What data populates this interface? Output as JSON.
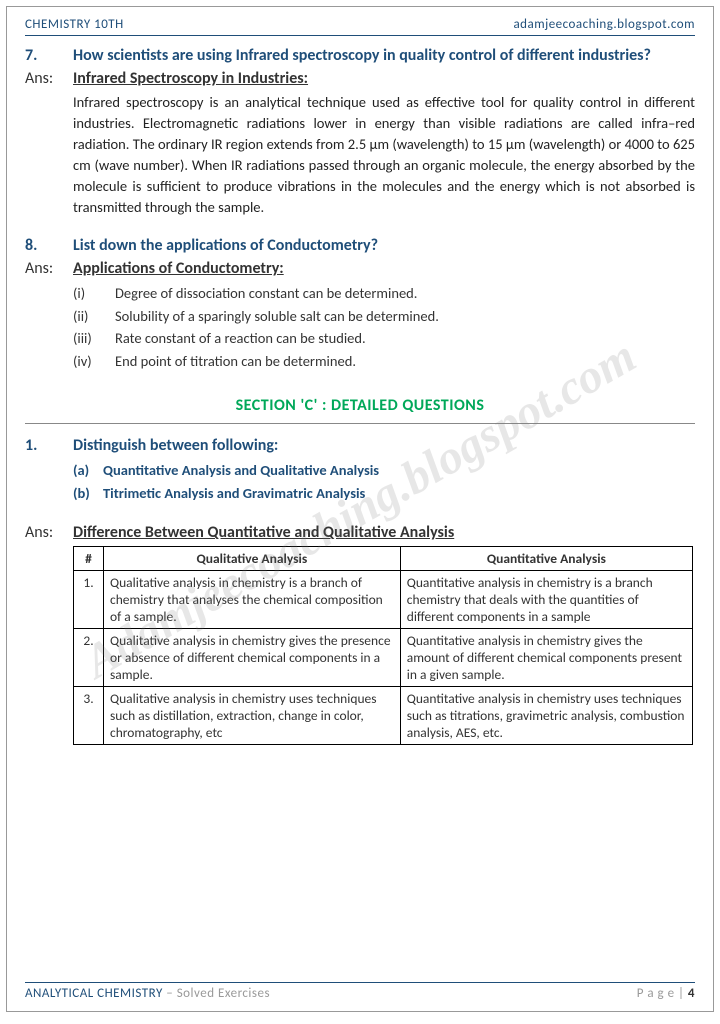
{
  "header": {
    "left": "CHEMISTRY 10TH",
    "right": "adamjeecoaching.blogspot.com"
  },
  "watermark": "Adamjeecoaching.blogspot.com",
  "q7": {
    "num": "7.",
    "question": "How scientists are using Infrared spectroscopy in quality control of different industries?",
    "ansLabel": "Ans:",
    "heading": "Infrared Spectroscopy in Industries:",
    "body": "Infrared spectroscopy is an analytical technique used as effective tool for quality control in different industries. Electromagnetic radiations lower in energy than visible radiations are called infra–red radiation. The ordinary IR region extends from 2.5 μm (wavelength) to 15 μm (wavelength) or 4000 to 625 cm (wave number). When IR radiations passed through an organic molecule, the energy absorbed by the molecule is sufficient to produce vibrations in the molecules and the energy which is not absorbed is transmitted through the sample."
  },
  "q8": {
    "num": "8.",
    "question": "List down the applications of Conductometry?",
    "ansLabel": "Ans:",
    "heading": "Applications of Conductometry:",
    "items": [
      {
        "m": "(i)",
        "t": "Degree of dissociation constant can be determined."
      },
      {
        "m": "(ii)",
        "t": "Solubility of a sparingly soluble salt can be determined."
      },
      {
        "m": "(iii)",
        "t": "Rate constant of a reaction can be studied."
      },
      {
        "m": "(iv)",
        "t": "End point of titration can be determined."
      }
    ]
  },
  "section": "SECTION 'C' : DETAILED QUESTIONS",
  "q1": {
    "num": "1.",
    "question": "Distinguish between following:",
    "subs": [
      {
        "m": "(a)",
        "t": "Quantitative Analysis and Qualitative Analysis"
      },
      {
        "m": "(b)",
        "t": "Titrimetic Analysis and Gravimatric Analysis"
      }
    ],
    "ansLabel": "Ans:",
    "heading": "Difference Between Quantitative and Qualitative Analysis"
  },
  "table": {
    "headers": [
      "#",
      "Qualitative Analysis",
      "Quantitative Analysis"
    ],
    "rows": [
      [
        "1.",
        "Qualitative analysis in chemistry is a branch of chemistry that analyses the chemical composition of a sample.",
        "Quantitative analysis in chemistry is a branch chemistry that deals with the quantities of different components in a sample"
      ],
      [
        "2.",
        "Qualitative analysis in chemistry gives the presence or absence of different chemical components in a sample.",
        "Quantitative analysis in chemistry gives the amount of different chemical components present in a given sample."
      ],
      [
        "3.",
        "Qualitative analysis in chemistry uses techniques such as distillation, extraction, change in color, chromatography, etc",
        "Quantitative analysis in chemistry uses techniques such as titrations, gravimetric analysis, combustion analysis, AES, etc."
      ]
    ]
  },
  "footer": {
    "title": "ANALYTICAL CHEMISTRY",
    "subtitle": " – Solved Exercises",
    "pageLabel": "P a g e  | ",
    "pageNum": "4"
  }
}
